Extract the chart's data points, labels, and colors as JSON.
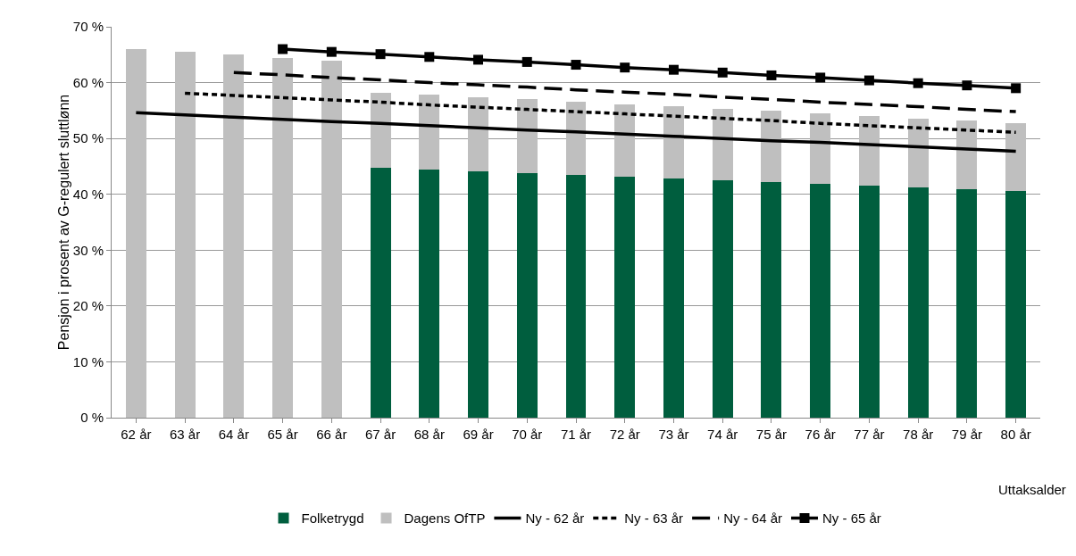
{
  "chart_data": {
    "type": "bar",
    "stacked": true,
    "ylabel": "Pensjon i prosent av G-regulert sluttlønn",
    "xlabel": "Uttaksalder",
    "categories": [
      "62 år",
      "63 år",
      "64 år",
      "65 år",
      "66 år",
      "67 år",
      "68 år",
      "69 år",
      "70 år",
      "71 år",
      "72 år",
      "73 år",
      "74 år",
      "75 år",
      "76 år",
      "77 år",
      "78 år",
      "79 år",
      "80 år"
    ],
    "series": [
      {
        "name": "Folketrygd",
        "color": "#005e3e",
        "values": [
          null,
          null,
          null,
          null,
          null,
          44.8,
          44.5,
          44.1,
          43.8,
          43.4,
          43.1,
          42.8,
          42.5,
          42.2,
          41.8,
          41.5,
          41.2,
          40.9,
          40.6
        ]
      },
      {
        "name": "Dagens OfTP",
        "color": "#bfbfbf",
        "values": [
          66.0,
          65.5,
          65.0,
          64.4,
          64.0,
          13.4,
          13.3,
          13.2,
          13.2,
          13.1,
          13.0,
          12.9,
          12.8,
          12.7,
          12.7,
          12.5,
          12.4,
          12.3,
          12.2
        ]
      },
      {
        "name": "Ny - 62 år",
        "type": "line",
        "color": "#000000",
        "line_style": "solid",
        "marker": "none",
        "values": [
          54.6,
          54.2,
          53.8,
          53.4,
          53.0,
          52.7,
          52.3,
          51.9,
          51.5,
          51.2,
          50.8,
          50.4,
          50.0,
          49.6,
          49.3,
          48.9,
          48.5,
          48.1,
          47.7
        ]
      },
      {
        "name": "Ny - 63 år",
        "type": "line",
        "color": "#000000",
        "line_style": "dotted",
        "marker": "none",
        "values": [
          null,
          58.1,
          57.7,
          57.3,
          56.9,
          56.5,
          56.0,
          55.6,
          55.2,
          54.8,
          54.4,
          54.0,
          53.6,
          53.2,
          52.7,
          52.3,
          51.9,
          51.5,
          51.1
        ]
      },
      {
        "name": "Ny - 64 år",
        "type": "line",
        "color": "#000000",
        "line_style": "dashed",
        "marker": "none",
        "values": [
          null,
          null,
          61.8,
          61.4,
          60.9,
          60.5,
          60.0,
          59.6,
          59.2,
          58.7,
          58.3,
          57.9,
          57.4,
          57.0,
          56.5,
          56.1,
          55.7,
          55.2,
          54.8
        ]
      },
      {
        "name": "Ny - 65 år",
        "type": "line",
        "color": "#000000",
        "line_style": "solid",
        "marker": "square",
        "values": [
          null,
          null,
          null,
          66.0,
          65.5,
          65.1,
          64.6,
          64.1,
          63.7,
          63.2,
          62.7,
          62.3,
          61.8,
          61.3,
          60.9,
          60.4,
          59.9,
          59.5,
          59.0
        ]
      }
    ],
    "ylim": [
      0,
      70
    ],
    "yticks": [
      {
        "value": 0,
        "label": "0 %"
      },
      {
        "value": 10,
        "label": "10 %"
      },
      {
        "value": 20,
        "label": "20 %"
      },
      {
        "value": 30,
        "label": "30 %"
      },
      {
        "value": 40,
        "label": "40 %"
      },
      {
        "value": 50,
        "label": "50 %"
      },
      {
        "value": 60,
        "label": "60 %"
      },
      {
        "value": 70,
        "label": "70 %"
      }
    ],
    "grid": "y",
    "legend": "bottom"
  }
}
